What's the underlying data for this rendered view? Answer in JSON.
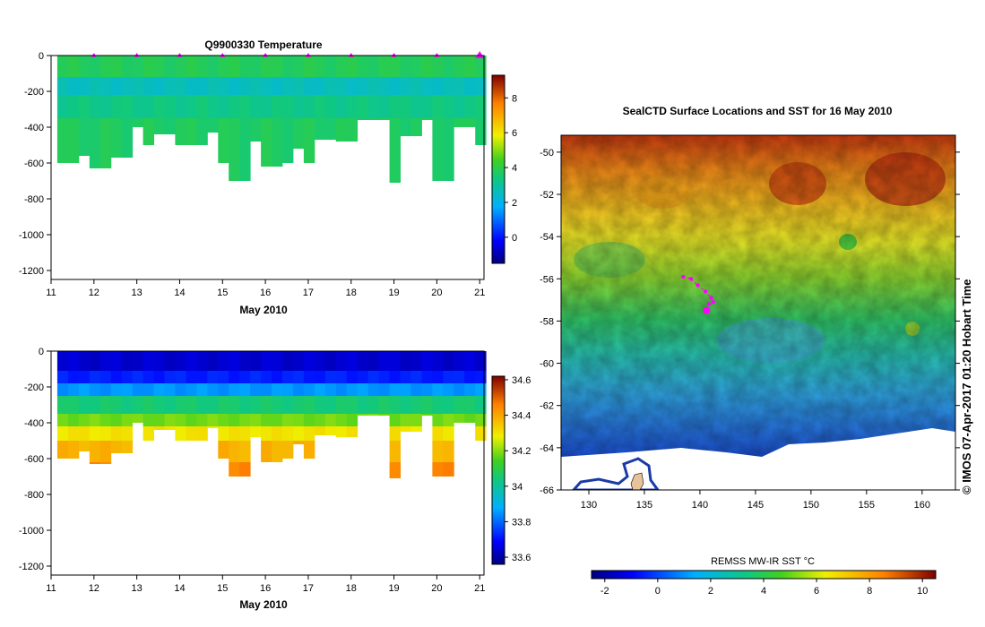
{
  "chart_data": [
    {
      "type": "heatmap",
      "title": "Q9900330  Temperature",
      "xlabel": "May 2010",
      "ylabel": "",
      "xlim": [
        11,
        21.1
      ],
      "ylim": [
        -1250,
        0
      ],
      "x_ticks": [
        "11",
        "12",
        "13",
        "14",
        "15",
        "16",
        "17",
        "18",
        "19",
        "20",
        "21"
      ],
      "y_ticks": [
        "0",
        "-200",
        "-400",
        "-600",
        "-800",
        "-1000",
        "-1200"
      ],
      "colorbar": {
        "min": -1.5,
        "max": 9.3,
        "ticks": [
          "0",
          "2",
          "4",
          "6",
          "8"
        ]
      },
      "profile_marker_days": [
        12,
        13,
        14,
        15,
        16,
        17,
        18,
        19,
        20,
        21
      ],
      "profile_days": [
        11.25,
        11.5,
        11.75,
        12.0,
        12.25,
        12.5,
        12.75,
        13.0,
        13.25,
        13.5,
        13.75,
        14.0,
        14.25,
        14.5,
        14.75,
        15.0,
        15.25,
        15.5,
        15.75,
        16.0,
        16.25,
        16.5,
        16.75,
        17.0,
        17.25,
        17.5,
        17.75,
        18.0,
        18.25,
        18.5,
        18.75,
        19.0,
        19.25,
        19.5,
        19.75,
        20.0,
        20.25,
        20.5,
        20.75,
        21.0
      ],
      "profile_max_depth": [
        -600,
        -600,
        -560,
        -630,
        -630,
        -570,
        -570,
        -400,
        -500,
        -440,
        -440,
        -500,
        -500,
        -500,
        -430,
        -600,
        -700,
        -700,
        -480,
        -620,
        -620,
        -600,
        -520,
        -600,
        -470,
        -470,
        -480,
        -480,
        -360,
        -360,
        -360,
        -710,
        -450,
        -450,
        -360,
        -700,
        -700,
        -400,
        -400,
        -500
      ],
      "layers": [
        {
          "top": 0,
          "bottom": -120,
          "value": 3.8
        },
        {
          "top": -120,
          "bottom": -220,
          "value": 2.6
        },
        {
          "top": -220,
          "bottom": -350,
          "value": 3.3
        },
        {
          "top": -350,
          "bottom": -750,
          "value": 3.7
        }
      ]
    },
    {
      "type": "heatmap",
      "title": "",
      "xlabel": "May 2010",
      "ylabel": "",
      "xlim": [
        11,
        21.1
      ],
      "ylim": [
        -1250,
        0
      ],
      "x_ticks": [
        "11",
        "12",
        "13",
        "14",
        "15",
        "16",
        "17",
        "18",
        "19",
        "20",
        "21"
      ],
      "y_ticks": [
        "0",
        "-200",
        "-400",
        "-600",
        "-800",
        "-1000",
        "-1200"
      ],
      "colorbar": {
        "min": 33.56,
        "max": 34.62,
        "ticks": [
          "33.6",
          "33.8",
          "34",
          "34.2",
          "34.4",
          "34.6"
        ]
      },
      "layers": [
        {
          "top": 0,
          "bottom": -110,
          "value": 33.64
        },
        {
          "top": -110,
          "bottom": -180,
          "value": 33.72
        },
        {
          "top": -180,
          "bottom": -250,
          "value": 33.85
        },
        {
          "top": -250,
          "bottom": -350,
          "value": 34.05
        },
        {
          "top": -350,
          "bottom": -420,
          "value": 34.18
        },
        {
          "top": -420,
          "bottom": -500,
          "value": 34.3
        },
        {
          "top": -500,
          "bottom": -620,
          "value": 34.38
        },
        {
          "top": -620,
          "bottom": -750,
          "value": 34.45
        }
      ]
    },
    {
      "type": "heatmap",
      "title": "SealCTD Surface Locations and SST for 16 May 2010",
      "xlabel": "",
      "ylabel": "",
      "xlim": [
        127.5,
        163
      ],
      "ylim": [
        -66,
        -49.2
      ],
      "x_ticks": [
        "130",
        "135",
        "140",
        "145",
        "150",
        "155",
        "160"
      ],
      "y_ticks": [
        "-50",
        "-52",
        "-54",
        "-56",
        "-58",
        "-60",
        "-62",
        "-64",
        "-66"
      ],
      "colorbar": {
        "label": "REMSS MW-IR SST °C",
        "min": -2.5,
        "max": 10.5,
        "ticks": [
          "-2",
          "0",
          "2",
          "4",
          "6",
          "8",
          "10"
        ]
      },
      "seal_track": [
        [
          138.5,
          -55.9
        ],
        [
          139.2,
          -56.0
        ],
        [
          139.8,
          -56.3
        ],
        [
          140.5,
          -56.6
        ],
        [
          141.0,
          -56.9
        ],
        [
          141.2,
          -57.1
        ],
        [
          140.8,
          -57.2
        ],
        [
          140.6,
          -57.5
        ]
      ],
      "copyright": "© IMOS 07-Apr-2017 01:20 Hobart Time"
    }
  ],
  "colors": {
    "seal_marker": "#ff00ff",
    "land": "#e8c29a",
    "ice_edge": "#ffffff"
  }
}
